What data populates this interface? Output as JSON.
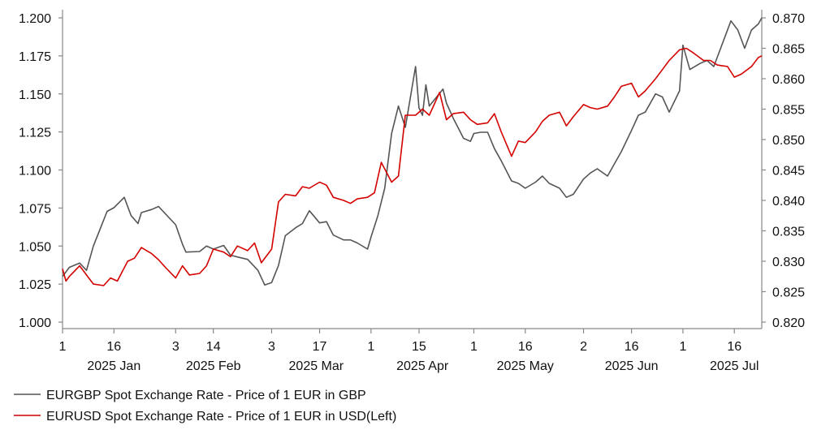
{
  "chart_data": {
    "type": "line",
    "title": "",
    "x_ticks": [
      "1",
      "16",
      "3",
      "14",
      "3",
      "17",
      "1",
      "15",
      "1",
      "16",
      "2",
      "16",
      "1",
      "16"
    ],
    "x_tick_dates": [
      "2025-01-01",
      "2025-01-16",
      "2025-02-03",
      "2025-02-14",
      "2025-03-03",
      "2025-03-17",
      "2025-04-01",
      "2025-04-15",
      "2025-05-01",
      "2025-05-16",
      "2025-06-02",
      "2025-06-16",
      "2025-07-01",
      "2025-07-16"
    ],
    "month_labels": [
      "2025 Jan",
      "2025 Feb",
      "2025 Mar",
      "2025 Apr",
      "2025 May",
      "2025 Jun",
      "2025 Jul"
    ],
    "month_label_dates": [
      "2025-01-16",
      "2025-02-14",
      "2025-03-16",
      "2025-04-16",
      "2025-05-16",
      "2025-06-16",
      "2025-07-16"
    ],
    "x_range": [
      "2025-01-01",
      "2025-07-24"
    ],
    "left_axis": {
      "ylim": [
        0.995,
        1.205
      ],
      "ticks": [
        "1.000",
        "1.025",
        "1.050",
        "1.075",
        "1.100",
        "1.125",
        "1.150",
        "1.175",
        "1.200"
      ]
    },
    "right_axis": {
      "ylim": [
        0.8193,
        0.8713
      ],
      "ticks": [
        "0.820",
        "0.825",
        "0.830",
        "0.835",
        "0.840",
        "0.845",
        "0.850",
        "0.855",
        "0.860",
        "0.865",
        "0.870"
      ]
    },
    "grid": false,
    "legend_position": "bottom-left",
    "series": [
      {
        "name": "EURGBP Spot Exchange Rate - Price of 1 EUR in GBP",
        "axis": "right",
        "color": "#555555",
        "points": [
          [
            "2025-01-01",
            0.8275
          ],
          [
            "2025-01-03",
            0.829
          ],
          [
            "2025-01-06",
            0.8297
          ],
          [
            "2025-01-08",
            0.8285
          ],
          [
            "2025-01-10",
            0.8325
          ],
          [
            "2025-01-14",
            0.8382
          ],
          [
            "2025-01-16",
            0.8388
          ],
          [
            "2025-01-19",
            0.8405
          ],
          [
            "2025-01-21",
            0.8375
          ],
          [
            "2025-01-23",
            0.8362
          ],
          [
            "2025-01-24",
            0.838
          ],
          [
            "2025-01-27",
            0.8385
          ],
          [
            "2025-01-29",
            0.839
          ],
          [
            "2025-01-31",
            0.8378
          ],
          [
            "2025-02-03",
            0.836
          ],
          [
            "2025-02-05",
            0.8328
          ],
          [
            "2025-02-06",
            0.8315
          ],
          [
            "2025-02-10",
            0.8316
          ],
          [
            "2025-02-12",
            0.8325
          ],
          [
            "2025-02-14",
            0.832
          ],
          [
            "2025-02-17",
            0.8326
          ],
          [
            "2025-02-19",
            0.831
          ],
          [
            "2025-02-21",
            0.8307
          ],
          [
            "2025-02-24",
            0.8303
          ],
          [
            "2025-02-27",
            0.8285
          ],
          [
            "2025-03-01",
            0.8261
          ],
          [
            "2025-03-03",
            0.8265
          ],
          [
            "2025-03-05",
            0.8293
          ],
          [
            "2025-03-07",
            0.8342
          ],
          [
            "2025-03-10",
            0.8355
          ],
          [
            "2025-03-12",
            0.8362
          ],
          [
            "2025-03-14",
            0.8383
          ],
          [
            "2025-03-17",
            0.8363
          ],
          [
            "2025-03-19",
            0.8365
          ],
          [
            "2025-03-21",
            0.8343
          ],
          [
            "2025-03-24",
            0.8335
          ],
          [
            "2025-03-26",
            0.8335
          ],
          [
            "2025-03-28",
            0.833
          ],
          [
            "2025-03-31",
            0.832
          ],
          [
            "2025-04-01",
            0.834
          ],
          [
            "2025-04-03",
            0.8375
          ],
          [
            "2025-04-05",
            0.842
          ],
          [
            "2025-04-07",
            0.851
          ],
          [
            "2025-04-09",
            0.8555
          ],
          [
            "2025-04-11",
            0.852
          ],
          [
            "2025-04-14",
            0.862
          ],
          [
            "2025-04-15",
            0.8552
          ],
          [
            "2025-04-16",
            0.854
          ],
          [
            "2025-04-17",
            0.859
          ],
          [
            "2025-04-18",
            0.8555
          ],
          [
            "2025-04-22",
            0.8583
          ],
          [
            "2025-04-23",
            0.856
          ],
          [
            "2025-04-25",
            0.8535
          ],
          [
            "2025-04-28",
            0.8502
          ],
          [
            "2025-04-30",
            0.8497
          ],
          [
            "2025-05-01",
            0.851
          ],
          [
            "2025-05-03",
            0.8512
          ],
          [
            "2025-05-05",
            0.8512
          ],
          [
            "2025-05-07",
            0.8485
          ],
          [
            "2025-05-09",
            0.8465
          ],
          [
            "2025-05-12",
            0.8432
          ],
          [
            "2025-05-14",
            0.8428
          ],
          [
            "2025-05-16",
            0.842
          ],
          [
            "2025-05-19",
            0.843
          ],
          [
            "2025-05-21",
            0.844
          ],
          [
            "2025-05-23",
            0.8428
          ],
          [
            "2025-05-26",
            0.842
          ],
          [
            "2025-05-28",
            0.8405
          ],
          [
            "2025-05-30",
            0.841
          ],
          [
            "2025-06-02",
            0.8435
          ],
          [
            "2025-06-04",
            0.8445
          ],
          [
            "2025-06-06",
            0.8452
          ],
          [
            "2025-06-09",
            0.844
          ],
          [
            "2025-06-11",
            0.846
          ],
          [
            "2025-06-13",
            0.848
          ],
          [
            "2025-06-16",
            0.8515
          ],
          [
            "2025-06-18",
            0.854
          ],
          [
            "2025-06-20",
            0.8545
          ],
          [
            "2025-06-23",
            0.8575
          ],
          [
            "2025-06-25",
            0.857
          ],
          [
            "2025-06-27",
            0.8545
          ],
          [
            "2025-06-30",
            0.858
          ],
          [
            "2025-07-01",
            0.8655
          ],
          [
            "2025-07-03",
            0.8615
          ],
          [
            "2025-07-06",
            0.8625
          ],
          [
            "2025-07-08",
            0.863
          ],
          [
            "2025-07-10",
            0.862
          ],
          [
            "2025-07-13",
            0.8665
          ],
          [
            "2025-07-15",
            0.8695
          ],
          [
            "2025-07-17",
            0.868
          ],
          [
            "2025-07-19",
            0.865
          ],
          [
            "2025-07-21",
            0.868
          ],
          [
            "2025-07-23",
            0.869
          ],
          [
            "2025-07-24",
            0.87
          ]
        ]
      },
      {
        "name": "EURUSD Spot Exchange Rate - Price of 1 EUR in USD(Left)",
        "axis": "left",
        "color": "#d40000",
        "points": [
          [
            "2025-01-01",
            1.035
          ],
          [
            "2025-01-02",
            1.027
          ],
          [
            "2025-01-03",
            1.03
          ],
          [
            "2025-01-06",
            1.037
          ],
          [
            "2025-01-08",
            1.031
          ],
          [
            "2025-01-10",
            1.025
          ],
          [
            "2025-01-13",
            1.024
          ],
          [
            "2025-01-15",
            1.029
          ],
          [
            "2025-01-17",
            1.027
          ],
          [
            "2025-01-20",
            1.04
          ],
          [
            "2025-01-22",
            1.042
          ],
          [
            "2025-01-24",
            1.049
          ],
          [
            "2025-01-27",
            1.045
          ],
          [
            "2025-01-29",
            1.041
          ],
          [
            "2025-01-31",
            1.036
          ],
          [
            "2025-02-03",
            1.029
          ],
          [
            "2025-02-05",
            1.037
          ],
          [
            "2025-02-07",
            1.031
          ],
          [
            "2025-02-10",
            1.032
          ],
          [
            "2025-02-12",
            1.037
          ],
          [
            "2025-02-14",
            1.048
          ],
          [
            "2025-02-17",
            1.046
          ],
          [
            "2025-02-19",
            1.043
          ],
          [
            "2025-02-21",
            1.05
          ],
          [
            "2025-02-24",
            1.047
          ],
          [
            "2025-02-26",
            1.052
          ],
          [
            "2025-02-28",
            1.039
          ],
          [
            "2025-03-03",
            1.048
          ],
          [
            "2025-03-05",
            1.079
          ],
          [
            "2025-03-07",
            1.084
          ],
          [
            "2025-03-10",
            1.083
          ],
          [
            "2025-03-12",
            1.089
          ],
          [
            "2025-03-14",
            1.088
          ],
          [
            "2025-03-17",
            1.092
          ],
          [
            "2025-03-19",
            1.09
          ],
          [
            "2025-03-21",
            1.082
          ],
          [
            "2025-03-24",
            1.08
          ],
          [
            "2025-03-26",
            1.078
          ],
          [
            "2025-03-28",
            1.081
          ],
          [
            "2025-03-31",
            1.082
          ],
          [
            "2025-04-02",
            1.085
          ],
          [
            "2025-04-04",
            1.105
          ],
          [
            "2025-04-07",
            1.092
          ],
          [
            "2025-04-09",
            1.096
          ],
          [
            "2025-04-11",
            1.136
          ],
          [
            "2025-04-14",
            1.136
          ],
          [
            "2025-04-16",
            1.14
          ],
          [
            "2025-04-18",
            1.136
          ],
          [
            "2025-04-21",
            1.151
          ],
          [
            "2025-04-23",
            1.133
          ],
          [
            "2025-04-25",
            1.137
          ],
          [
            "2025-04-28",
            1.138
          ],
          [
            "2025-04-30",
            1.133
          ],
          [
            "2025-05-02",
            1.13
          ],
          [
            "2025-05-05",
            1.131
          ],
          [
            "2025-05-07",
            1.137
          ],
          [
            "2025-05-09",
            1.125
          ],
          [
            "2025-05-12",
            1.109
          ],
          [
            "2025-05-14",
            1.119
          ],
          [
            "2025-05-16",
            1.118
          ],
          [
            "2025-05-19",
            1.125
          ],
          [
            "2025-05-21",
            1.132
          ],
          [
            "2025-05-23",
            1.136
          ],
          [
            "2025-05-26",
            1.138
          ],
          [
            "2025-05-28",
            1.129
          ],
          [
            "2025-05-30",
            1.135
          ],
          [
            "2025-06-02",
            1.143
          ],
          [
            "2025-06-04",
            1.141
          ],
          [
            "2025-06-06",
            1.14
          ],
          [
            "2025-06-09",
            1.142
          ],
          [
            "2025-06-11",
            1.148
          ],
          [
            "2025-06-13",
            1.155
          ],
          [
            "2025-06-16",
            1.157
          ],
          [
            "2025-06-18",
            1.148
          ],
          [
            "2025-06-20",
            1.152
          ],
          [
            "2025-06-23",
            1.16
          ],
          [
            "2025-06-25",
            1.166
          ],
          [
            "2025-06-27",
            1.172
          ],
          [
            "2025-06-30",
            1.179
          ],
          [
            "2025-07-02",
            1.18
          ],
          [
            "2025-07-04",
            1.177
          ],
          [
            "2025-07-07",
            1.172
          ],
          [
            "2025-07-09",
            1.172
          ],
          [
            "2025-07-11",
            1.169
          ],
          [
            "2025-07-14",
            1.168
          ],
          [
            "2025-07-16",
            1.161
          ],
          [
            "2025-07-18",
            1.163
          ],
          [
            "2025-07-21",
            1.168
          ],
          [
            "2025-07-23",
            1.174
          ],
          [
            "2025-07-24",
            1.175
          ]
        ]
      }
    ]
  }
}
